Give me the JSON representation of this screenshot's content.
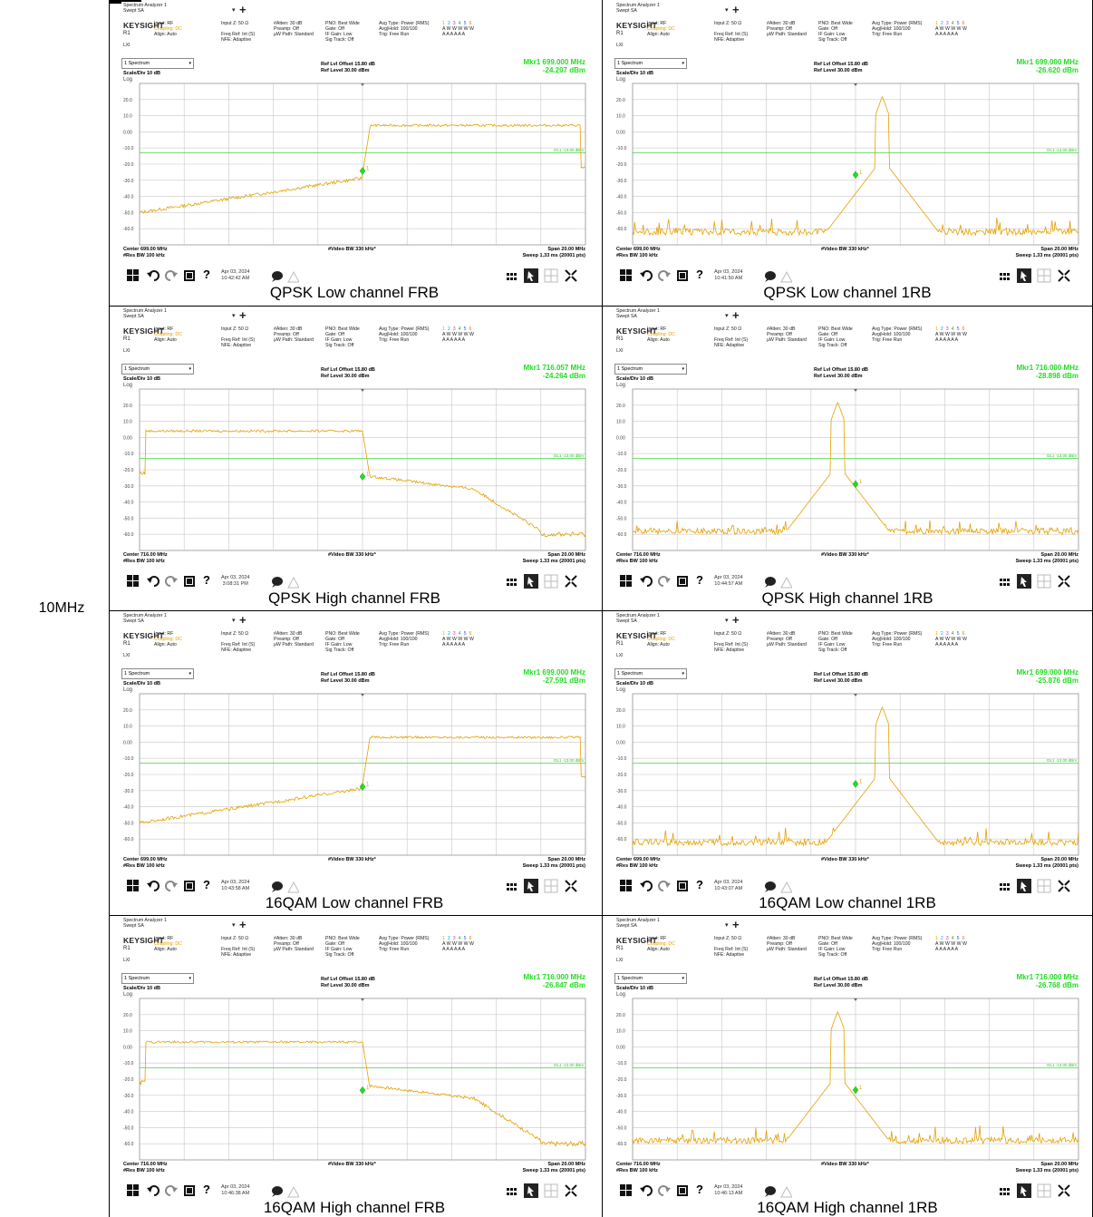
{
  "bandwidth_label": "10MHz",
  "colors": {
    "trace": "#e5a000",
    "marker": "#22dd22",
    "grid": "#c8c8c8",
    "dl_line": "#22cc22"
  },
  "common": {
    "app_title": "Spectrum Analyzer 1",
    "app_subtitle": "Swept SA",
    "brand": "KEYSIGHT",
    "input_rf": "Input: RF",
    "coupling": "Coupling: DC",
    "align": "Align: Auto",
    "ri": "R1",
    "lxi": "LXI",
    "input_z": "Input Z: 50 Ω",
    "freq_ref": "Freq Ref: Int (S)",
    "nfe": "NFE: Adaptive",
    "atten": "#Atten: 30 dB",
    "preamp": "Preamp: Off",
    "uw_path": "µW Path: Standard",
    "pno": "PNO: Best Wide",
    "gate": "Gate: Off",
    "if_gain": "IF Gain: Low",
    "sig_track": "Sig Track: Off",
    "avg_type": "Avg Type: Power (RMS)",
    "avg_hold": "Avg|Hold: 100/100",
    "trig": "Trig: Free Run",
    "trace_nums": [
      "1",
      "2",
      "3",
      "4",
      "5",
      "6"
    ],
    "trace_modes": "A W W W W W",
    "trace_dets": "A A A A A A",
    "spectrum_label": "1 Spectrum",
    "scale_div": "Scale/Div 10 dB",
    "log_label": "Log",
    "ref_offset": "Ref Lvl Offset 15.80 dB",
    "ref_level": "Ref Level 30.00 dBm",
    "video_bw": "#Video BW 330 kHz*",
    "res_bw": "#Res BW 100 kHz",
    "span": "Span 20.00 MHz",
    "sweep": "Sweep 1.33 ms (20001 pts)",
    "dl_label": "DL1 -13.00 dBm",
    "y_ticks": [
      "20.0",
      "10.0",
      "0.00",
      "-10.0",
      "-20.0",
      "-30.0",
      "-40.0",
      "-50.0",
      "-60.0"
    ],
    "date": "Apr 03, 2024"
  },
  "chart_data": [
    {
      "type": "line",
      "title": "QPSK Low channel FRB",
      "center": "Center 699.00 MHz",
      "marker_freq": "Mkr1  699.000 MHz",
      "marker_level": "-24.207 dBm",
      "time": "10:42:42 AM",
      "shape": "frb_low",
      "ylim": [
        -70,
        30
      ],
      "x": [
        -10,
        -5,
        0,
        0.4,
        1,
        5,
        9.8,
        10
      ],
      "y": [
        -50,
        -38,
        -27,
        4,
        4,
        4,
        4,
        -20
      ]
    },
    {
      "type": "line",
      "title": "QPSK Low channel 1RB",
      "center": "Center 699.00 MHz",
      "marker_freq": "Mkr1  699.000 MHz",
      "marker_level": "-26.620 dBm",
      "time": "10:41:50 AM",
      "shape": "rb_low",
      "ylim": [
        -70,
        30
      ],
      "x": [
        -10,
        -3,
        0,
        1,
        2,
        4,
        10
      ],
      "y": [
        -63,
        -57,
        -22,
        22,
        -30,
        -52,
        -60
      ]
    },
    {
      "type": "line",
      "title": "QPSK High channel FRB",
      "center": "Center 716.00 MHz",
      "marker_freq": "Mkr1  716.057 MHz",
      "marker_level": "-24.264 dBm",
      "time": "3:08:31 PM",
      "shape": "frb_high",
      "ylim": [
        -70,
        30
      ],
      "x": [
        -10,
        -9.8,
        -9.5,
        0,
        0.2,
        5,
        8,
        10
      ],
      "y": [
        -22,
        -2,
        4,
        4,
        -24,
        -32,
        -58,
        -62
      ]
    },
    {
      "type": "line",
      "title": "QPSK High channel 1RB",
      "center": "Center 716.00 MHz",
      "marker_freq": "Mkr1  716.000 MHz",
      "marker_level": "-28.898 dBm",
      "time": "10:44:57 AM",
      "shape": "rb_high",
      "ylim": [
        -70,
        30
      ],
      "x": [
        -10,
        -4,
        -2,
        -1,
        0,
        3,
        10
      ],
      "y": [
        -60,
        -55,
        -50,
        22,
        -28,
        -55,
        -62
      ]
    },
    {
      "type": "line",
      "title": "16QAM Low channel FRB",
      "center": "Center 699.00 MHz",
      "marker_freq": "Mkr1  699.000 MHz",
      "marker_level": "-27.591 dBm",
      "time": "10:43:58 AM",
      "shape": "frb_low",
      "ylim": [
        -70,
        30
      ],
      "x": [
        -10,
        -5,
        0,
        0.4,
        1,
        5,
        9.8,
        10
      ],
      "y": [
        -52,
        -40,
        -28,
        3,
        3,
        3,
        3,
        -18
      ]
    },
    {
      "type": "line",
      "title": "16QAM Low channel 1RB",
      "center": "Center 699.00 MHz",
      "marker_freq": "Mkr1  699.000 MHz",
      "marker_level": "-25.876 dBm",
      "time": "10:43:07 AM",
      "shape": "rb_low",
      "ylim": [
        -70,
        30
      ],
      "x": [
        -10,
        -3,
        0,
        1,
        2,
        4,
        10
      ],
      "y": [
        -60,
        -50,
        -20,
        22,
        -28,
        -50,
        -58
      ]
    },
    {
      "type": "line",
      "title": "16QAM High channel FRB",
      "center": "Center 716.00 MHz",
      "marker_freq": "Mkr1  716.000 MHz",
      "marker_level": "-26.847 dBm",
      "time": "10:46:38 AM",
      "shape": "frb_high",
      "ylim": [
        -70,
        30
      ],
      "x": [
        -10,
        -9.8,
        -9.5,
        0,
        0.2,
        5,
        8,
        10
      ],
      "y": [
        -25,
        -1,
        3,
        3,
        -25,
        -33,
        -60,
        -63
      ]
    },
    {
      "type": "line",
      "title": "16QAM High channel 1RB",
      "center": "Center 716.00 MHz",
      "marker_freq": "Mkr1  716.000 MHz",
      "marker_level": "-26.768 dBm",
      "time": "10:46:13 AM",
      "shape": "rb_high",
      "ylim": [
        -70,
        30
      ],
      "x": [
        -10,
        -4,
        -2,
        -1,
        0,
        3,
        10
      ],
      "y": [
        -58,
        -52,
        -48,
        22,
        -26,
        -55,
        -63
      ]
    }
  ]
}
